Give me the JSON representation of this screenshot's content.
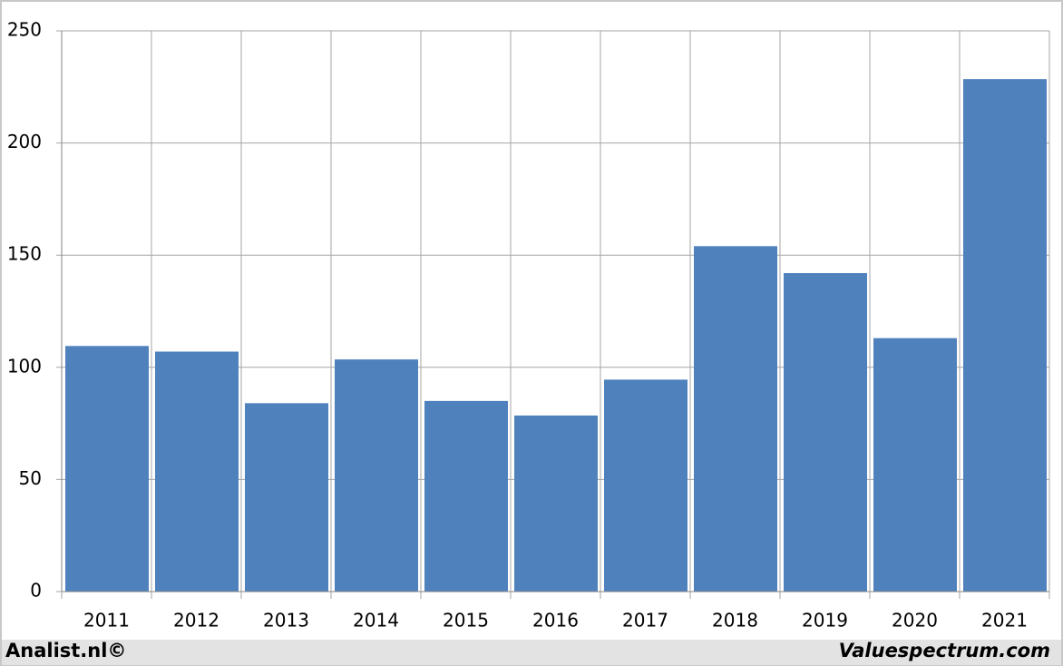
{
  "chart_data": {
    "type": "bar",
    "categories": [
      "2011",
      "2012",
      "2013",
      "2014",
      "2015",
      "2016",
      "2017",
      "2018",
      "2019",
      "2020",
      "2021"
    ],
    "values": [
      109.5,
      107,
      84,
      103.5,
      85,
      78.5,
      94.5,
      154,
      142,
      113,
      228.5
    ],
    "color": "#4f81bd",
    "ylim": [
      0,
      250
    ],
    "yticks": [
      0,
      50,
      100,
      150,
      200,
      250
    ],
    "grid": true,
    "credits": [
      "Analist.nl©",
      "Valuespectrum.com"
    ]
  }
}
